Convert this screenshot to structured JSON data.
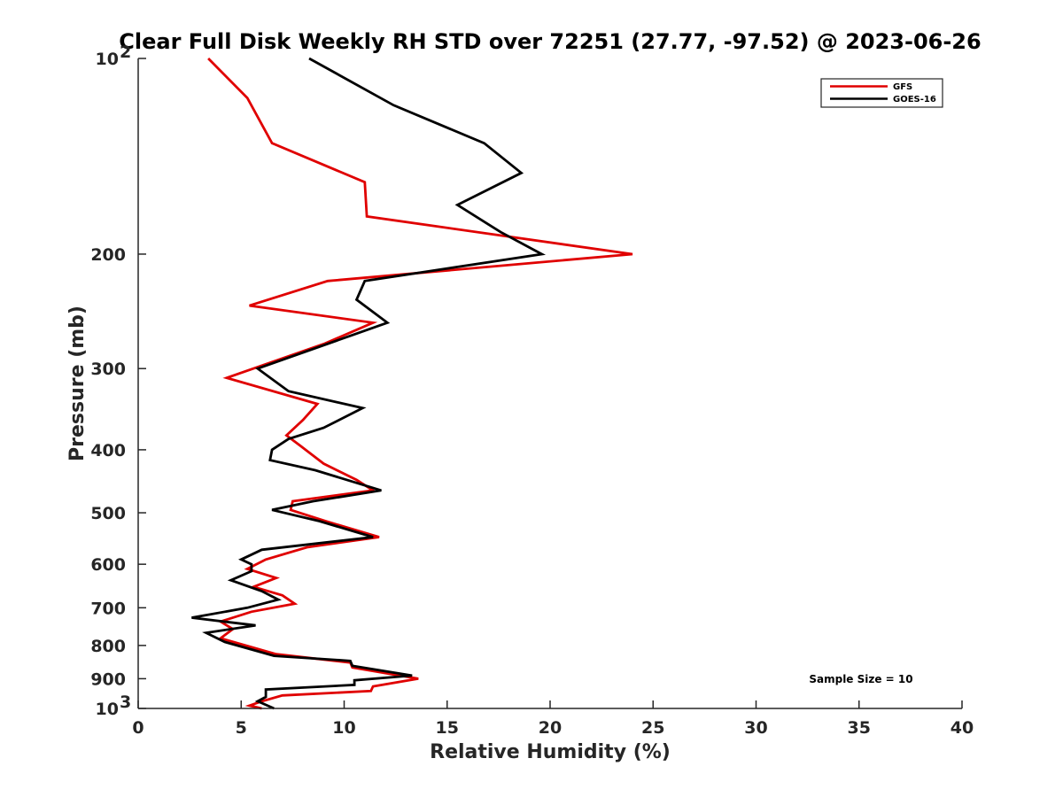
{
  "chart_data": {
    "type": "line",
    "title": "Clear Full Disk Weekly RH STD over 72251 (27.77, -97.52) @ 2023-06-26",
    "xlabel": "Relative Humidity (%)",
    "ylabel": "Pressure (mb)",
    "xlim": [
      0,
      40
    ],
    "ylim": [
      100,
      1000
    ],
    "y_scale": "log",
    "y_reversed": true,
    "grid": false,
    "x_ticks": [
      0,
      5,
      10,
      15,
      20,
      25,
      30,
      35,
      40
    ],
    "x_tick_labels": [
      "0",
      "5",
      "10",
      "15",
      "20",
      "25",
      "30",
      "35",
      "40"
    ],
    "y_ticks": [
      100,
      200,
      300,
      400,
      500,
      600,
      700,
      800,
      900,
      1000
    ],
    "y_tick_labels": [
      {
        "base": "10",
        "exp": "2"
      },
      {
        "base": "200",
        "exp": ""
      },
      {
        "base": "300",
        "exp": ""
      },
      {
        "base": "400",
        "exp": ""
      },
      {
        "base": "500",
        "exp": ""
      },
      {
        "base": "600",
        "exp": ""
      },
      {
        "base": "700",
        "exp": ""
      },
      {
        "base": "800",
        "exp": ""
      },
      {
        "base": "900",
        "exp": ""
      },
      {
        "base": "10",
        "exp": "3"
      }
    ],
    "legend_position": "top-right",
    "annotation": "Sample Size = 10",
    "series": [
      {
        "name": "GFS",
        "color": "#e00000",
        "points": [
          [
            3.4,
            100
          ],
          [
            5.3,
            115
          ],
          [
            6.5,
            135
          ],
          [
            11.0,
            155
          ],
          [
            11.1,
            175
          ],
          [
            24.0,
            200
          ],
          [
            9.2,
            220
          ],
          [
            5.4,
            240
          ],
          [
            11.4,
            255
          ],
          [
            9.0,
            275
          ],
          [
            4.3,
            310
          ],
          [
            8.7,
            340
          ],
          [
            8.0,
            360
          ],
          [
            7.2,
            380
          ],
          [
            7.9,
            395
          ],
          [
            9.0,
            420
          ],
          [
            10.6,
            445
          ],
          [
            11.4,
            462
          ],
          [
            7.5,
            480
          ],
          [
            7.4,
            495
          ],
          [
            9.1,
            515
          ],
          [
            11.7,
            545
          ],
          [
            8.2,
            565
          ],
          [
            6.2,
            590
          ],
          [
            5.3,
            610
          ],
          [
            6.7,
            630
          ],
          [
            5.6,
            650
          ],
          [
            7.0,
            670
          ],
          [
            7.6,
            690
          ],
          [
            5.5,
            710
          ],
          [
            4.0,
            735
          ],
          [
            4.6,
            755
          ],
          [
            4.0,
            780
          ],
          [
            6.7,
            825
          ],
          [
            10.3,
            850
          ],
          [
            10.4,
            865
          ],
          [
            13.6,
            900
          ],
          [
            11.4,
            925
          ],
          [
            11.3,
            940
          ],
          [
            7.0,
            955
          ],
          [
            6.0,
            975
          ],
          [
            5.4,
            990
          ],
          [
            6.0,
            1000
          ]
        ]
      },
      {
        "name": "GOES-16",
        "color": "#000000",
        "points": [
          [
            8.3,
            100
          ],
          [
            12.4,
            118
          ],
          [
            16.8,
            135
          ],
          [
            18.6,
            150
          ],
          [
            15.5,
            168
          ],
          [
            17.6,
            185
          ],
          [
            19.6,
            200
          ],
          [
            11.0,
            220
          ],
          [
            10.6,
            235
          ],
          [
            12.1,
            255
          ],
          [
            5.8,
            300
          ],
          [
            7.3,
            325
          ],
          [
            10.9,
            345
          ],
          [
            9.0,
            370
          ],
          [
            7.3,
            385
          ],
          [
            6.5,
            400
          ],
          [
            6.4,
            415
          ],
          [
            8.6,
            430
          ],
          [
            11.8,
            462
          ],
          [
            8.5,
            480
          ],
          [
            6.5,
            495
          ],
          [
            8.8,
            515
          ],
          [
            11.4,
            545
          ],
          [
            6.0,
            570
          ],
          [
            5.0,
            590
          ],
          [
            5.5,
            600
          ],
          [
            5.5,
            615
          ],
          [
            4.5,
            635
          ],
          [
            6.0,
            660
          ],
          [
            6.8,
            680
          ],
          [
            5.3,
            700
          ],
          [
            2.6,
            725
          ],
          [
            5.7,
            745
          ],
          [
            3.3,
            765
          ],
          [
            4.2,
            790
          ],
          [
            6.6,
            830
          ],
          [
            10.3,
            845
          ],
          [
            10.4,
            860
          ],
          [
            13.3,
            890
          ],
          [
            10.5,
            905
          ],
          [
            10.5,
            920
          ],
          [
            6.2,
            935
          ],
          [
            6.2,
            960
          ],
          [
            5.8,
            975
          ],
          [
            6.6,
            1000
          ]
        ]
      }
    ]
  }
}
